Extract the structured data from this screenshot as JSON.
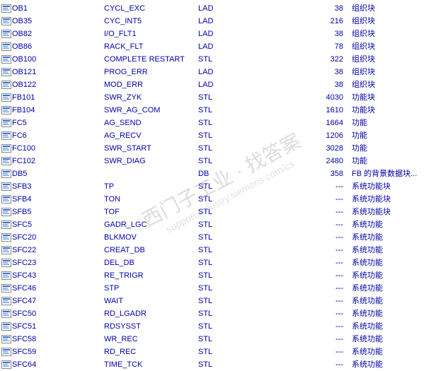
{
  "colors": {
    "text": "#0000aa",
    "background": "#ffffff",
    "watermark": "rgba(130,130,130,0.28)"
  },
  "watermark": {
    "line1": "西门子工业 · 找答案",
    "line2": "support.industry.siemens.com/cs"
  },
  "rows": [
    {
      "name": "OB1",
      "sym": "CYCL_EXC",
      "lang": "LAD",
      "size": "38",
      "desc": "组织块"
    },
    {
      "name": "OB35",
      "sym": "CYC_INT5",
      "lang": "LAD",
      "size": "216",
      "desc": "组织块"
    },
    {
      "name": "OB82",
      "sym": "I/O_FLT1",
      "lang": "LAD",
      "size": "38",
      "desc": "组织块"
    },
    {
      "name": "OB86",
      "sym": "RACK_FLT",
      "lang": "LAD",
      "size": "78",
      "desc": "组织块"
    },
    {
      "name": "OB100",
      "sym": "COMPLETE RESTART",
      "lang": "STL",
      "size": "322",
      "desc": "组织块"
    },
    {
      "name": "OB121",
      "sym": "PROG_ERR",
      "lang": "LAD",
      "size": "38",
      "desc": "组织块"
    },
    {
      "name": "OB122",
      "sym": "MOD_ERR",
      "lang": "LAD",
      "size": "38",
      "desc": "组织块"
    },
    {
      "name": "FB101",
      "sym": "SWR_ZYK",
      "lang": "STL",
      "size": "4030",
      "desc": "功能块"
    },
    {
      "name": "FB104",
      "sym": "SWR_AG_COM",
      "lang": "STL",
      "size": "1610",
      "desc": "功能块"
    },
    {
      "name": "FC5",
      "sym": "AG_SEND",
      "lang": "STL",
      "size": "1664",
      "desc": "功能"
    },
    {
      "name": "FC6",
      "sym": "AG_RECV",
      "lang": "STL",
      "size": "1206",
      "desc": "功能"
    },
    {
      "name": "FC100",
      "sym": "SWR_START",
      "lang": "STL",
      "size": "3028",
      "desc": "功能"
    },
    {
      "name": "FC102",
      "sym": "SWR_DIAG",
      "lang": "STL",
      "size": "2480",
      "desc": "功能"
    },
    {
      "name": "DB5",
      "sym": "",
      "lang": "DB",
      "size": "358",
      "desc": "FB 的背景数据块..."
    },
    {
      "name": "SFB3",
      "sym": "TP",
      "lang": "STL",
      "size": "---",
      "desc": "系统功能块"
    },
    {
      "name": "SFB4",
      "sym": "TON",
      "lang": "STL",
      "size": "---",
      "desc": "系统功能块"
    },
    {
      "name": "SFB5",
      "sym": "TOF",
      "lang": "STL",
      "size": "---",
      "desc": "系统功能块"
    },
    {
      "name": "SFC5",
      "sym": "GADR_LGC",
      "lang": "STL",
      "size": "---",
      "desc": "系统功能"
    },
    {
      "name": "SFC20",
      "sym": "BLKMOV",
      "lang": "STL",
      "size": "---",
      "desc": "系统功能"
    },
    {
      "name": "SFC22",
      "sym": "CREAT_DB",
      "lang": "STL",
      "size": "---",
      "desc": "系统功能"
    },
    {
      "name": "SFC23",
      "sym": "DEL_DB",
      "lang": "STL",
      "size": "---",
      "desc": "系统功能"
    },
    {
      "name": "SFC43",
      "sym": "RE_TRIGR",
      "lang": "STL",
      "size": "---",
      "desc": "系统功能"
    },
    {
      "name": "SFC46",
      "sym": "STP",
      "lang": "STL",
      "size": "---",
      "desc": "系统功能"
    },
    {
      "name": "SFC47",
      "sym": "WAIT",
      "lang": "STL",
      "size": "---",
      "desc": "系统功能"
    },
    {
      "name": "SFC50",
      "sym": "RD_LGADR",
      "lang": "STL",
      "size": "---",
      "desc": "系统功能"
    },
    {
      "name": "SFC51",
      "sym": "RDSYSST",
      "lang": "STL",
      "size": "---",
      "desc": "系统功能"
    },
    {
      "name": "SFC58",
      "sym": "WR_REC",
      "lang": "STL",
      "size": "---",
      "desc": "系统功能"
    },
    {
      "name": "SFC59",
      "sym": "RD_REC",
      "lang": "STL",
      "size": "---",
      "desc": "系统功能"
    },
    {
      "name": "SFC64",
      "sym": "TIME_TCK",
      "lang": "STL",
      "size": "---",
      "desc": "系统功能"
    }
  ]
}
